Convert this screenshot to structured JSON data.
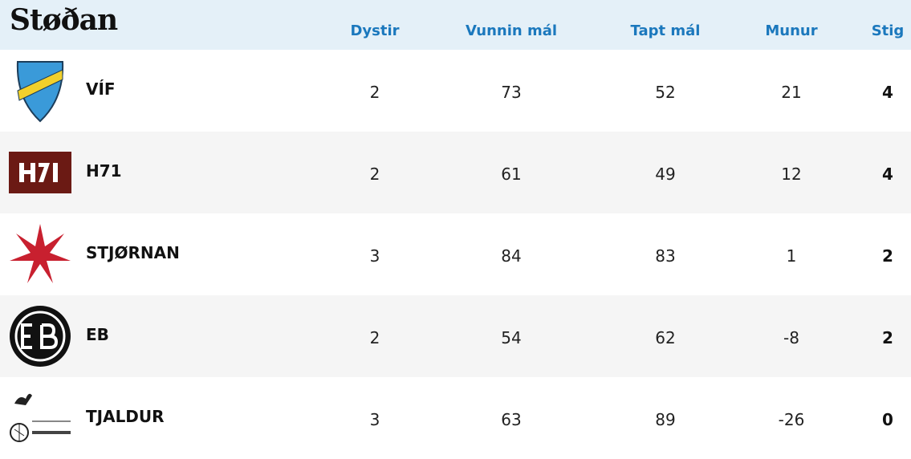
{
  "header": {
    "title": "Støðan",
    "columns": [
      "Dystir",
      "Vunnin mál",
      "Tapt mál",
      "Munur",
      "Stig"
    ]
  },
  "table": {
    "rows": [
      [
        "VÍF",
        2,
        73,
        52,
        21,
        4
      ],
      [
        "H71",
        2,
        61,
        49,
        12,
        4
      ],
      [
        "STJØRNAN",
        3,
        84,
        83,
        1,
        2
      ],
      [
        "EB",
        2,
        54,
        62,
        -8,
        2
      ],
      [
        "TJALDUR",
        3,
        63,
        89,
        -26,
        0
      ]
    ]
  }
}
